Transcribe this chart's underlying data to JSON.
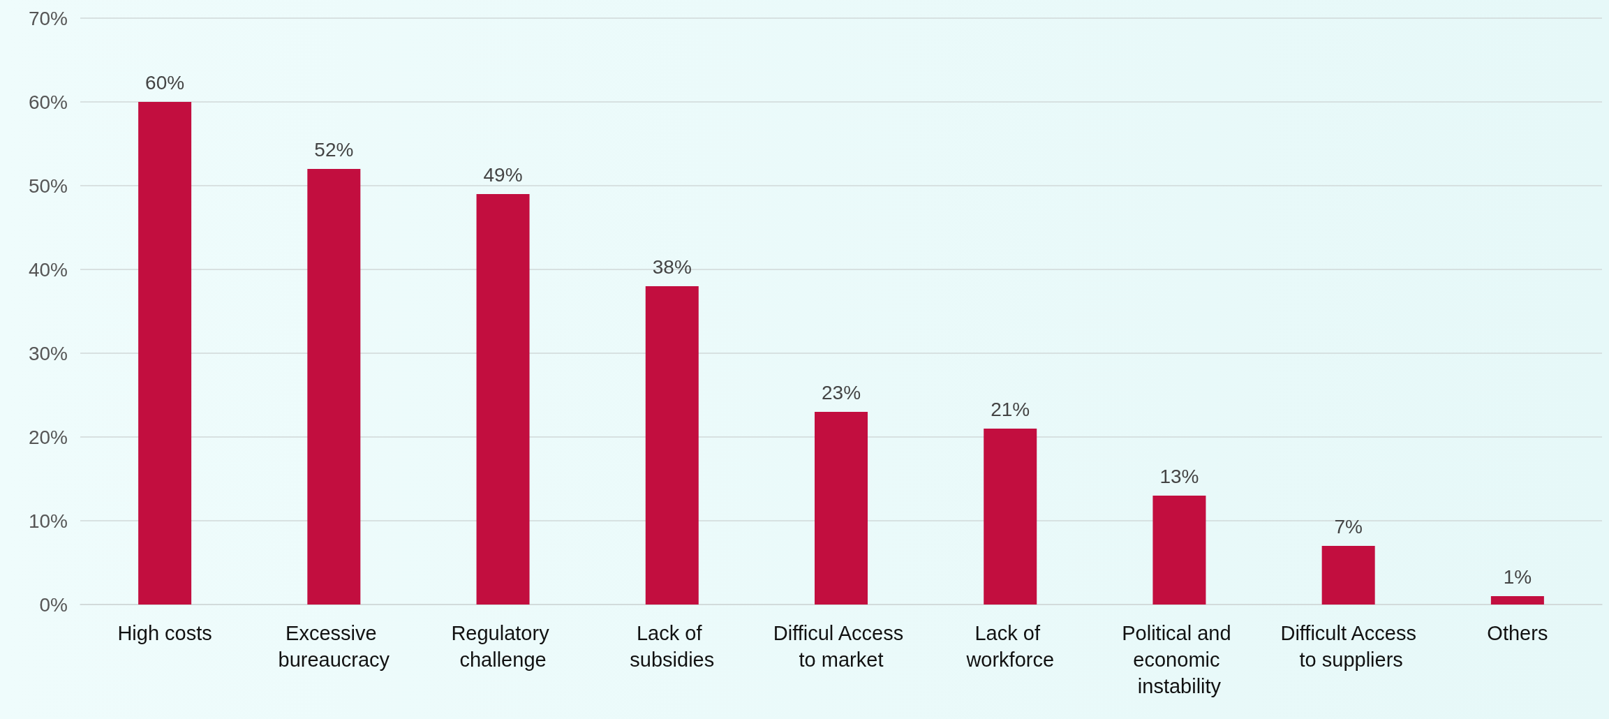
{
  "chart_data": {
    "type": "bar",
    "categories": [
      "High costs",
      "Excessive bureaucracy",
      "Regulatory challenge",
      "Lack of subsidies",
      "Difficul Access to market",
      "Lack of workforce",
      "Political and economic instability",
      "Difficult Access to suppliers",
      "Others"
    ],
    "values": [
      60,
      52,
      49,
      38,
      23,
      21,
      13,
      7,
      1
    ],
    "value_labels": [
      "60%",
      "52%",
      "49%",
      "38%",
      "23%",
      "21%",
      "13%",
      "7%",
      "1%"
    ],
    "color": "#c20e3f",
    "ylim": [
      0,
      70
    ],
    "yticks": [
      {
        "value": 0,
        "label": "0%"
      },
      {
        "value": 10,
        "label": "10%"
      },
      {
        "value": 20,
        "label": "20%"
      },
      {
        "value": 30,
        "label": "30%"
      },
      {
        "value": 40,
        "label": "40%"
      },
      {
        "value": 50,
        "label": "50%"
      },
      {
        "value": 60,
        "label": "60%"
      },
      {
        "value": 70,
        "label": "70%"
      }
    ],
    "grid": "y"
  }
}
